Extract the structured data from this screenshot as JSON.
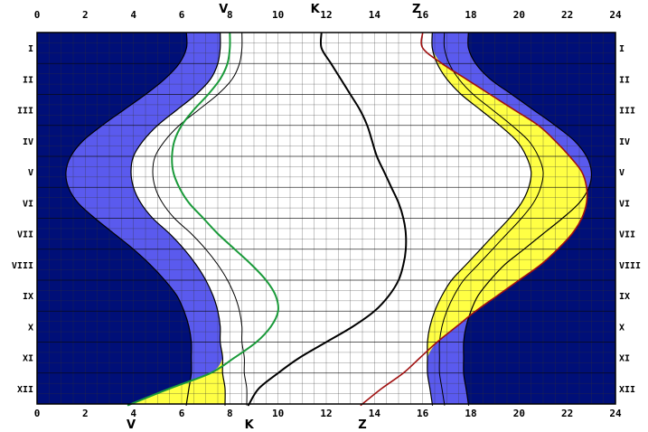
{
  "chart_data": {
    "type": "line",
    "title": "",
    "xlabel": "",
    "ylabel": "",
    "xlim": [
      0,
      24
    ],
    "x_ticks": [
      "0",
      "2",
      "4",
      "6",
      "8",
      "10",
      "12",
      "14",
      "16",
      "18",
      "20",
      "22",
      "24"
    ],
    "months": [
      "I",
      "II",
      "III",
      "IV",
      "V",
      "VI",
      "VII",
      "VIII",
      "IX",
      "X",
      "XI",
      "XII"
    ],
    "grid": true,
    "colors": {
      "night": "#000f78",
      "twilight": "#5a5aee",
      "day": "#ffffff",
      "highlight": "#ffff44",
      "venus": "#1a9a3a",
      "culmination": "#000000",
      "setting": "#a01010",
      "grid": "#333333"
    },
    "curve_labels_top": {
      "venus": "V",
      "culmination": "K",
      "setting": "Z"
    },
    "curve_labels_bottom": {
      "venus": "V",
      "culmination": "K",
      "setting": "Z"
    },
    "series": [
      {
        "name": "V",
        "month_index": [
          0,
          0.5,
          1,
          1.5,
          2,
          2.5,
          3,
          3.5,
          4,
          4.5,
          5,
          5.5,
          6,
          6.5,
          7,
          7.5,
          8,
          8.5,
          9,
          9.5,
          10,
          10.5,
          11,
          11.5
        ],
        "x": [
          8.0,
          7.9,
          7.6,
          7.1,
          6.5,
          6.0,
          5.7,
          5.6,
          5.65,
          5.9,
          6.3,
          6.9,
          7.5,
          8.2,
          8.9,
          9.5,
          9.9,
          10.0,
          9.7,
          9.1,
          8.2,
          7.2,
          5.5,
          3.9
        ]
      },
      {
        "name": "K",
        "month_index": [
          0,
          0.5,
          1,
          1.5,
          2,
          2.5,
          3,
          3.5,
          4,
          4.5,
          5,
          5.5,
          6,
          6.5,
          7,
          7.5,
          8,
          8.5,
          9,
          9.5,
          10,
          10.5,
          11,
          11.5
        ],
        "x": [
          11.8,
          12.2,
          12.6,
          13.0,
          13.4,
          13.7,
          13.9,
          14.1,
          14.4,
          14.7,
          15.0,
          15.2,
          15.3,
          15.3,
          15.2,
          15.0,
          14.6,
          14.0,
          13.1,
          12.0,
          10.9,
          10.0,
          9.2,
          8.8
        ]
      },
      {
        "name": "Z",
        "month_index": [
          0,
          0.5,
          1,
          1.5,
          2,
          2.5,
          3,
          3.5,
          4,
          4.5,
          5,
          5.5,
          6,
          6.5,
          7,
          7.5,
          8,
          8.5,
          9,
          9.5,
          10,
          10.5,
          11,
          11.5
        ],
        "x": [
          16.0,
          16.8,
          17.8,
          18.8,
          19.8,
          20.8,
          21.5,
          22.1,
          22.6,
          22.8,
          22.8,
          22.6,
          22.2,
          21.6,
          20.9,
          20.0,
          19.1,
          18.2,
          17.4,
          16.6,
          15.9,
          15.2,
          14.3,
          13.5
        ]
      },
      {
        "name": "dusk_band",
        "x_left": [
          7.9,
          7.9,
          7.8,
          7.6,
          7.2,
          6.8,
          6.4,
          6.0,
          5.8,
          5.8,
          6.0,
          6.4,
          6.9,
          7.4,
          7.9,
          8.4,
          8.9,
          9.4,
          9.9,
          9.9,
          9.9,
          9.9,
          9.9,
          9.9
        ]
      },
      {
        "name": "dawn_day_left",
        "x": [
          7.6,
          7.5,
          7.2,
          6.6,
          5.8,
          5.0,
          4.4,
          4.0,
          3.9,
          4.0,
          4.3,
          4.8,
          5.5,
          6.1,
          6.6,
          7.0,
          7.3,
          7.5,
          7.6,
          7.6,
          7.7,
          7.7,
          7.8,
          7.8
        ]
      },
      {
        "name": "dawn_astro_left",
        "x": [
          6.2,
          5.9,
          5.3,
          4.5,
          3.6,
          2.7,
          1.9,
          1.4,
          1.2,
          1.3,
          1.7,
          2.4,
          3.2,
          4.0,
          4.7,
          5.3,
          5.8,
          6.1,
          6.3,
          6.4,
          6.4,
          6.4,
          6.3,
          6.2
        ]
      },
      {
        "name": "dusk_day_right",
        "x": [
          16.4,
          16.6,
          17.0,
          17.6,
          18.4,
          19.2,
          19.9,
          20.3,
          20.5,
          20.4,
          20.1,
          19.6,
          19.0,
          18.4,
          17.8,
          17.2,
          16.8,
          16.5,
          16.3,
          16.2,
          16.2,
          16.2,
          16.3,
          16.4
        ]
      },
      {
        "name": "dusk_astro_right",
        "x": [
          17.9,
          18.2,
          18.8,
          19.7,
          20.6,
          21.5,
          22.3,
          22.8,
          23.0,
          22.9,
          22.5,
          21.8,
          21.0,
          20.2,
          19.4,
          18.8,
          18.3,
          18.0,
          17.8,
          17.7,
          17.7,
          17.7,
          17.8,
          17.9
        ]
      }
    ]
  }
}
